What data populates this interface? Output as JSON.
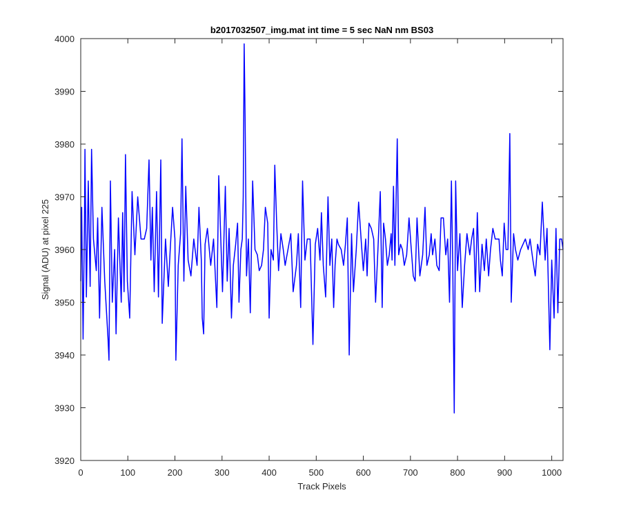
{
  "chart_data": {
    "type": "line",
    "title": "b2017032507_img.mat int time = 5 sec  NaN nm BS03",
    "xlabel": "Track Pixels",
    "ylabel": "Signal (ADU) at pixel 225",
    "xlim": [
      0,
      1024
    ],
    "ylim": [
      3920,
      4000
    ],
    "xticks": [
      0,
      100,
      200,
      300,
      400,
      500,
      600,
      700,
      800,
      900,
      1000
    ],
    "yticks": [
      3920,
      3930,
      3940,
      3950,
      3960,
      3970,
      3980,
      3990,
      4000
    ],
    "grid": false,
    "legend": "none",
    "series": [
      {
        "color": "#0000ff",
        "points": [
          [
            0,
            3954
          ],
          [
            2,
            3968
          ],
          [
            5,
            3943
          ],
          [
            8,
            3966
          ],
          [
            9,
            3979
          ],
          [
            12,
            3951
          ],
          [
            16,
            3973
          ],
          [
            20,
            3953
          ],
          [
            23,
            3979
          ],
          [
            27,
            3962
          ],
          [
            33,
            3956
          ],
          [
            36,
            3966
          ],
          [
            40,
            3947
          ],
          [
            45,
            3968
          ],
          [
            51,
            3954
          ],
          [
            58,
            3943
          ],
          [
            60,
            3939
          ],
          [
            63,
            3973
          ],
          [
            67,
            3950
          ],
          [
            72,
            3960
          ],
          [
            75,
            3944
          ],
          [
            80,
            3966
          ],
          [
            86,
            3950
          ],
          [
            89,
            3967
          ],
          [
            92,
            3952
          ],
          [
            95,
            3978
          ],
          [
            99,
            3954
          ],
          [
            104,
            3947
          ],
          [
            109,
            3971
          ],
          [
            115,
            3959
          ],
          [
            121,
            3970
          ],
          [
            128,
            3962
          ],
          [
            135,
            3962
          ],
          [
            140,
            3964
          ],
          [
            145,
            3977
          ],
          [
            149,
            3958
          ],
          [
            152,
            3968
          ],
          [
            156,
            3952
          ],
          [
            161,
            3971
          ],
          [
            165,
            3951
          ],
          [
            170,
            3977
          ],
          [
            173,
            3946
          ],
          [
            180,
            3962
          ],
          [
            186,
            3953
          ],
          [
            190,
            3960
          ],
          [
            195,
            3968
          ],
          [
            200,
            3962
          ],
          [
            202,
            3939
          ],
          [
            207,
            3957
          ],
          [
            212,
            3963
          ],
          [
            215,
            3981
          ],
          [
            219,
            3954
          ],
          [
            223,
            3972
          ],
          [
            228,
            3958
          ],
          [
            234,
            3955
          ],
          [
            240,
            3962
          ],
          [
            247,
            3957
          ],
          [
            251,
            3968
          ],
          [
            256,
            3958
          ],
          [
            258,
            3947
          ],
          [
            261,
            3944
          ],
          [
            264,
            3961
          ],
          [
            269,
            3964
          ],
          [
            276,
            3957
          ],
          [
            282,
            3962
          ],
          [
            289,
            3949
          ],
          [
            293,
            3974
          ],
          [
            301,
            3952
          ],
          [
            307,
            3972
          ],
          [
            311,
            3954
          ],
          [
            315,
            3964
          ],
          [
            320,
            3947
          ],
          [
            324,
            3957
          ],
          [
            329,
            3961
          ],
          [
            333,
            3965
          ],
          [
            336,
            3950
          ],
          [
            340,
            3960
          ],
          [
            343,
            3962
          ],
          [
            345,
            3970
          ],
          [
            347,
            3999
          ],
          [
            349,
            3985
          ],
          [
            352,
            3955
          ],
          [
            356,
            3962
          ],
          [
            360,
            3948
          ],
          [
            365,
            3973
          ],
          [
            370,
            3960
          ],
          [
            375,
            3959
          ],
          [
            379,
            3956
          ],
          [
            384,
            3957
          ],
          [
            388,
            3960
          ],
          [
            392,
            3968
          ],
          [
            397,
            3965
          ],
          [
            400,
            3947
          ],
          [
            404,
            3960
          ],
          [
            409,
            3958
          ],
          [
            412,
            3976
          ],
          [
            416,
            3965
          ],
          [
            420,
            3956
          ],
          [
            425,
            3963
          ],
          [
            430,
            3960
          ],
          [
            434,
            3957
          ],
          [
            436,
            3958
          ],
          [
            440,
            3960
          ],
          [
            446,
            3963
          ],
          [
            451,
            3952
          ],
          [
            458,
            3957
          ],
          [
            462,
            3963
          ],
          [
            467,
            3949
          ],
          [
            471,
            3973
          ],
          [
            476,
            3958
          ],
          [
            481,
            3962
          ],
          [
            487,
            3962
          ],
          [
            493,
            3942
          ],
          [
            498,
            3961
          ],
          [
            503,
            3964
          ],
          [
            508,
            3958
          ],
          [
            511,
            3967
          ],
          [
            515,
            3957
          ],
          [
            520,
            3951
          ],
          [
            525,
            3970
          ],
          [
            529,
            3957
          ],
          [
            533,
            3962
          ],
          [
            537,
            3949
          ],
          [
            540,
            3957
          ],
          [
            544,
            3962
          ],
          [
            547,
            3961
          ],
          [
            553,
            3960
          ],
          [
            558,
            3957
          ],
          [
            562,
            3961
          ],
          [
            566,
            3966
          ],
          [
            570,
            3940
          ],
          [
            575,
            3963
          ],
          [
            579,
            3952
          ],
          [
            585,
            3960
          ],
          [
            590,
            3969
          ],
          [
            596,
            3961
          ],
          [
            600,
            3956
          ],
          [
            605,
            3962
          ],
          [
            608,
            3955
          ],
          [
            612,
            3965
          ],
          [
            617,
            3964
          ],
          [
            622,
            3962
          ],
          [
            626,
            3950
          ],
          [
            631,
            3960
          ],
          [
            636,
            3971
          ],
          [
            640,
            3949
          ],
          [
            643,
            3965
          ],
          [
            647,
            3962
          ],
          [
            651,
            3957
          ],
          [
            655,
            3959
          ],
          [
            659,
            3963
          ],
          [
            661,
            3958
          ],
          [
            664,
            3972
          ],
          [
            667,
            3957
          ],
          [
            672,
            3981
          ],
          [
            675,
            3959
          ],
          [
            679,
            3961
          ],
          [
            683,
            3960
          ],
          [
            687,
            3957
          ],
          [
            692,
            3959
          ],
          [
            697,
            3966
          ],
          [
            701,
            3961
          ],
          [
            706,
            3955
          ],
          [
            710,
            3954
          ],
          [
            714,
            3966
          ],
          [
            720,
            3955
          ],
          [
            726,
            3959
          ],
          [
            731,
            3968
          ],
          [
            735,
            3957
          ],
          [
            740,
            3959
          ],
          [
            744,
            3963
          ],
          [
            747,
            3959
          ],
          [
            752,
            3962
          ],
          [
            756,
            3957
          ],
          [
            761,
            3956
          ],
          [
            765,
            3966
          ],
          [
            770,
            3966
          ],
          [
            775,
            3959
          ],
          [
            779,
            3962
          ],
          [
            783,
            3950
          ],
          [
            787,
            3973
          ],
          [
            790,
            3956
          ],
          [
            793,
            3929
          ],
          [
            796,
            3973
          ],
          [
            800,
            3956
          ],
          [
            805,
            3963
          ],
          [
            810,
            3949
          ],
          [
            815,
            3957
          ],
          [
            820,
            3963
          ],
          [
            826,
            3959
          ],
          [
            830,
            3962
          ],
          [
            834,
            3964
          ],
          [
            838,
            3952
          ],
          [
            842,
            3967
          ],
          [
            847,
            3952
          ],
          [
            852,
            3961
          ],
          [
            857,
            3956
          ],
          [
            861,
            3962
          ],
          [
            866,
            3955
          ],
          [
            870,
            3960
          ],
          [
            875,
            3964
          ],
          [
            880,
            3962
          ],
          [
            884,
            3962
          ],
          [
            888,
            3962
          ],
          [
            891,
            3958
          ],
          [
            895,
            3955
          ],
          [
            899,
            3965
          ],
          [
            903,
            3960
          ],
          [
            907,
            3960
          ],
          [
            911,
            3982
          ],
          [
            914,
            3950
          ],
          [
            919,
            3963
          ],
          [
            923,
            3960
          ],
          [
            928,
            3958
          ],
          [
            934,
            3960
          ],
          [
            939,
            3961
          ],
          [
            944,
            3962
          ],
          [
            950,
            3960
          ],
          [
            954,
            3962
          ],
          [
            960,
            3958
          ],
          [
            965,
            3955
          ],
          [
            970,
            3961
          ],
          [
            975,
            3959
          ],
          [
            980,
            3969
          ],
          [
            986,
            3958
          ],
          [
            990,
            3964
          ],
          [
            996,
            3941
          ],
          [
            1000,
            3958
          ],
          [
            1005,
            3947
          ],
          [
            1009,
            3964
          ],
          [
            1013,
            3948
          ],
          [
            1017,
            3962
          ],
          [
            1021,
            3962
          ],
          [
            1024,
            3960
          ]
        ]
      }
    ]
  }
}
